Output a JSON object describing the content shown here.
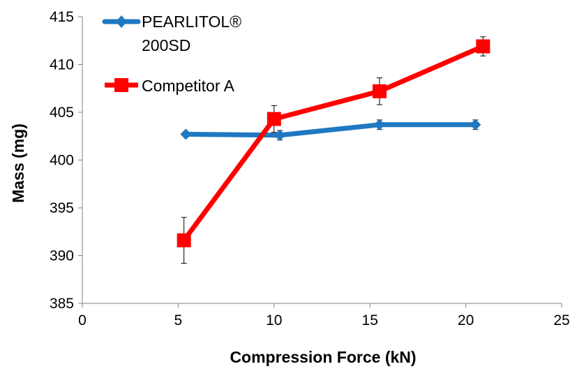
{
  "chart_data": {
    "type": "line",
    "title": "",
    "xlabel": "Compression Force (kN)",
    "ylabel": "Mass (mg)",
    "xlim": [
      0,
      25
    ],
    "ylim": [
      385,
      415
    ],
    "xticks": [
      0,
      5,
      10,
      15,
      20,
      25
    ],
    "yticks": [
      385,
      390,
      395,
      400,
      405,
      410,
      415
    ],
    "legend_position": "top-left",
    "series": [
      {
        "name": "PEARLITOL® 200SD",
        "name_lines": [
          "PEARLITOL®",
          "200SD"
        ],
        "color": "#1f78c1",
        "marker": "diamond",
        "points": [
          {
            "x": 5.4,
            "y": 402.7,
            "err": 0
          },
          {
            "x": 10.3,
            "y": 402.6,
            "err": 0.5
          },
          {
            "x": 15.5,
            "y": 403.7,
            "err": 0.5
          },
          {
            "x": 20.5,
            "y": 403.7,
            "err": 0.5
          }
        ]
      },
      {
        "name": "Competitor A",
        "name_lines": [
          "Competitor A"
        ],
        "color": "#ff0000",
        "marker": "square",
        "points": [
          {
            "x": 5.3,
            "y": 391.6,
            "err": 2.4
          },
          {
            "x": 10.0,
            "y": 404.3,
            "err": 1.4
          },
          {
            "x": 15.5,
            "y": 407.2,
            "err": 1.4
          },
          {
            "x": 20.9,
            "y": 411.9,
            "err": 1.0
          }
        ]
      }
    ]
  }
}
